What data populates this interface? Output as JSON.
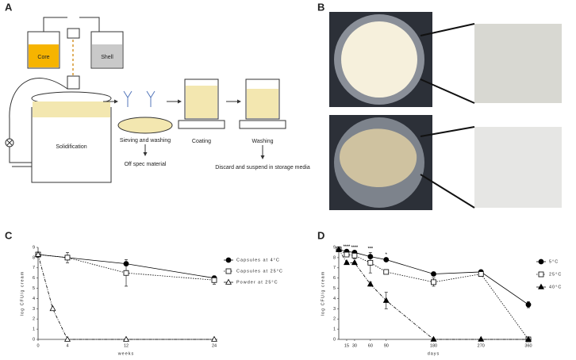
{
  "panels": {
    "A": {
      "label": "A",
      "core": "Core",
      "shell": "Shell",
      "solidification": "Solidification",
      "sieving": "Sieving and washing",
      "off_spec": "Off spec material",
      "coating": "Coating",
      "washing": "Washing",
      "discard": "Discard and suspend in storage media"
    },
    "B": {
      "label": "B"
    }
  },
  "chart_data": [
    {
      "type": "line",
      "panel": "C",
      "x_label": "weeks",
      "y_label": "log CFU/g cream",
      "xlim": [
        0,
        24
      ],
      "xticks": [
        0,
        4,
        12,
        24
      ],
      "ylim": [
        0,
        9
      ],
      "yticks": [
        0,
        1,
        2,
        3,
        4,
        5,
        6,
        7,
        8,
        9
      ],
      "series": [
        {
          "name": "Capsules at 4°C",
          "color": "#000000",
          "marker": "circle",
          "filled": true,
          "dash": "none",
          "x": [
            0,
            4,
            12,
            24
          ],
          "values": [
            8.3,
            8.0,
            7.4,
            6.0
          ],
          "errors": [
            0.2,
            0.2,
            0.2,
            0.2
          ]
        },
        {
          "name": "Capsules at 25°C",
          "color": "#000000",
          "marker": "square",
          "filled": false,
          "dash": "1.5,1.5",
          "x": [
            0,
            4,
            12,
            24
          ],
          "values": [
            8.3,
            8.0,
            6.5,
            5.8
          ],
          "errors": [
            0.2,
            0.5,
            1.3,
            0.4
          ]
        },
        {
          "name": "Powder at 25°C",
          "color": "#000000",
          "marker": "triangle",
          "filled": false,
          "dash": "4,1.5,1,1.5",
          "x": [
            0,
            2,
            4,
            12,
            24
          ],
          "values": [
            8.3,
            3.0,
            0,
            0,
            0
          ],
          "errors": [
            0,
            0,
            0,
            0,
            0
          ]
        }
      ]
    },
    {
      "type": "line",
      "panel": "D",
      "x_label": "days",
      "y_label": "log CFU/g cream",
      "xlim": [
        0,
        360
      ],
      "xticks": [
        15,
        30,
        60,
        90,
        180,
        270,
        360
      ],
      "ylim": [
        0,
        9
      ],
      "yticks": [
        0,
        1,
        2,
        3,
        4,
        5,
        6,
        7,
        8,
        9
      ],
      "series": [
        {
          "name": "5°C",
          "color": "#000000",
          "marker": "circle",
          "filled": true,
          "dash": "none",
          "x": [
            0,
            15,
            30,
            60,
            90,
            180,
            270,
            360
          ],
          "values": [
            8.8,
            8.6,
            8.5,
            8.1,
            7.8,
            6.4,
            6.6,
            3.4
          ],
          "errors": [
            0.1,
            0.1,
            0.1,
            0.1,
            0.1,
            0.2,
            0.1,
            0.3
          ]
        },
        {
          "name": "25°C",
          "color": "#000000",
          "marker": "square",
          "filled": false,
          "dash": "1.5,1.5",
          "x": [
            0,
            15,
            30,
            60,
            90,
            180,
            270,
            360
          ],
          "values": [
            8.8,
            8.3,
            8.2,
            7.5,
            6.6,
            5.6,
            6.4,
            0
          ],
          "errors": [
            0.1,
            0.2,
            0.3,
            1.0,
            0.2,
            0.4,
            0.2,
            0
          ]
        },
        {
          "name": "40°C",
          "color": "#000000",
          "marker": "triangle",
          "filled": true,
          "dash": "4,1.5,1,1.5",
          "x": [
            0,
            15,
            30,
            60,
            90,
            180,
            270,
            360
          ],
          "values": [
            8.8,
            7.5,
            7.5,
            5.4,
            3.8,
            0,
            0,
            0
          ],
          "errors": [
            0.1,
            0.1,
            0.1,
            0.2,
            0.8,
            0,
            0,
            0
          ]
        }
      ],
      "annotations": [
        {
          "text": "****",
          "x": 15
        },
        {
          "text": "****",
          "x": 30
        },
        {
          "text": "***",
          "x": 60
        },
        {
          "text": "*",
          "x": 90
        }
      ]
    }
  ]
}
